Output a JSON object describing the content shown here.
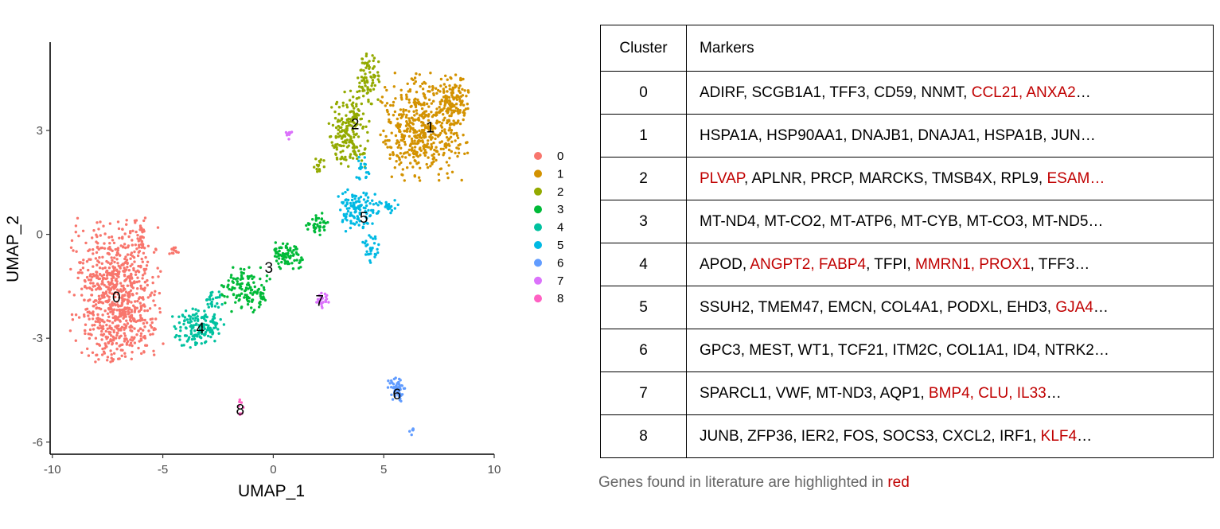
{
  "chart_data": {
    "type": "scatter",
    "xlabel": "UMAP_1",
    "ylabel": "UMAP_2",
    "xlim": [
      -10.1,
      10
    ],
    "ylim": [
      -6.35,
      5.55
    ],
    "xticks": [
      -10,
      -5,
      0,
      5,
      10
    ],
    "yticks": [
      -6,
      -3,
      0,
      3
    ],
    "ytick_labels": [
      "-6",
      "-3",
      "0",
      "3"
    ],
    "grid": false,
    "legend_position": "right",
    "legend": [
      "0",
      "1",
      "2",
      "3",
      "4",
      "5",
      "6",
      "7",
      "8"
    ],
    "colors": [
      "#F8766D",
      "#D39200",
      "#93AA00",
      "#00BA38",
      "#00C19F",
      "#00B9E3",
      "#619CFF",
      "#DB72FB",
      "#FF61C3"
    ],
    "clusters": [
      {
        "name": "0",
        "label_pos": [
          -7.1,
          -1.8
        ],
        "blobs": [
          [
            -7.1,
            -1.6,
            1.3,
            1.3,
            700
          ],
          [
            -6.9,
            -2.9,
            0.9,
            0.5,
            100
          ],
          [
            -6.0,
            0.0,
            0.15,
            0.35,
            25
          ],
          [
            -4.4,
            -0.5,
            0.2,
            0.1,
            12
          ]
        ]
      },
      {
        "name": "1",
        "label_pos": [
          7.1,
          3.1
        ],
        "blobs": [
          [
            6.8,
            3.1,
            1.25,
            0.95,
            520
          ],
          [
            8.2,
            3.9,
            0.45,
            0.4,
            80
          ]
        ]
      },
      {
        "name": "2",
        "label_pos": [
          3.7,
          3.2
        ],
        "blobs": [
          [
            3.5,
            3.0,
            0.6,
            0.7,
            190
          ],
          [
            4.3,
            4.5,
            0.35,
            0.45,
            80
          ],
          [
            2.1,
            2.0,
            0.2,
            0.15,
            15
          ]
        ]
      },
      {
        "name": "3",
        "label_pos": [
          -0.2,
          -0.95
        ],
        "blobs": [
          [
            -1.2,
            -1.6,
            0.7,
            0.4,
            130
          ],
          [
            0.6,
            -0.6,
            0.45,
            0.25,
            80
          ],
          [
            2.0,
            0.3,
            0.35,
            0.2,
            40
          ]
        ]
      },
      {
        "name": "4",
        "label_pos": [
          -3.3,
          -2.7
        ],
        "blobs": [
          [
            -3.4,
            -2.7,
            0.75,
            0.35,
            150
          ],
          [
            -2.8,
            -1.9,
            0.3,
            0.2,
            25
          ]
        ]
      },
      {
        "name": "5",
        "label_pos": [
          4.1,
          0.5
        ],
        "blobs": [
          [
            3.7,
            0.7,
            0.55,
            0.4,
            120
          ],
          [
            4.4,
            -0.4,
            0.25,
            0.3,
            30
          ],
          [
            5.2,
            0.8,
            0.35,
            0.15,
            25
          ],
          [
            4.0,
            1.9,
            0.25,
            0.3,
            20
          ]
        ]
      },
      {
        "name": "6",
        "label_pos": [
          5.6,
          -4.6
        ],
        "blobs": [
          [
            5.6,
            -4.5,
            0.25,
            0.25,
            55
          ],
          [
            6.3,
            -5.7,
            0.1,
            0.1,
            6
          ]
        ]
      },
      {
        "name": "7",
        "label_pos": [
          2.1,
          -1.9
        ],
        "blobs": [
          [
            2.2,
            -1.9,
            0.2,
            0.15,
            25
          ],
          [
            0.7,
            2.9,
            0.12,
            0.1,
            10
          ]
        ]
      },
      {
        "name": "8",
        "label_pos": [
          -1.5,
          -5.05
        ],
        "blobs": [
          [
            -1.5,
            -5.0,
            0.1,
            0.15,
            8
          ]
        ]
      }
    ]
  },
  "table": {
    "headers": [
      "Cluster",
      "Markers"
    ],
    "rows": [
      {
        "cluster": "0",
        "markers": [
          {
            "t": "ADIRF, SCGB1A1, TFF3, CD59, NNMT, ",
            "hl": false
          },
          {
            "t": "CCL21, ANXA2",
            "hl": true
          },
          {
            "t": "…",
            "hl": false
          }
        ]
      },
      {
        "cluster": "1",
        "markers": [
          {
            "t": "HSPA1A, HSP90AA1, DNAJB1, DNAJA1, HSPA1B, JUN…",
            "hl": false
          }
        ]
      },
      {
        "cluster": "2",
        "markers": [
          {
            "t": "PLVAP",
            "hl": true
          },
          {
            "t": ", APLNR, PRCP, MARCKS, TMSB4X, RPL9, ",
            "hl": false
          },
          {
            "t": "ESAM…",
            "hl": true
          }
        ]
      },
      {
        "cluster": "3",
        "markers": [
          {
            "t": "MT-ND4, MT-CO2, MT-ATP6, MT-CYB, MT-CO3, MT-ND5…",
            "hl": false
          }
        ]
      },
      {
        "cluster": "4",
        "markers": [
          {
            "t": "APOD, ",
            "hl": false
          },
          {
            "t": "ANGPT2, FABP4",
            "hl": true
          },
          {
            "t": ", TFPI, ",
            "hl": false
          },
          {
            "t": "MMRN1, PROX1",
            "hl": true
          },
          {
            "t": ", TFF3…",
            "hl": false
          }
        ]
      },
      {
        "cluster": "5",
        "markers": [
          {
            "t": "SSUH2, TMEM47, EMCN, COL4A1, PODXL, EHD3, ",
            "hl": false
          },
          {
            "t": "GJA4",
            "hl": true
          },
          {
            "t": "…",
            "hl": false
          }
        ]
      },
      {
        "cluster": "6",
        "markers": [
          {
            "t": "GPC3, MEST, WT1, TCF21, ITM2C, COL1A1, ID4, NTRK2…",
            "hl": false
          }
        ]
      },
      {
        "cluster": "7",
        "markers": [
          {
            "t": "SPARCL1, VWF, MT-ND3, AQP1, ",
            "hl": false
          },
          {
            "t": "BMP4, CLU, IL33",
            "hl": true
          },
          {
            "t": "…",
            "hl": false
          }
        ]
      },
      {
        "cluster": "8",
        "markers": [
          {
            "t": "JUNB, ZFP36, IER2, FOS, SOCS3, CXCL2, IRF1, ",
            "hl": false
          },
          {
            "t": "KLF4",
            "hl": true
          },
          {
            "t": "…",
            "hl": false
          }
        ]
      }
    ]
  },
  "caption": {
    "text": "Genes found in literature are highlighted in ",
    "highlight": "red"
  }
}
